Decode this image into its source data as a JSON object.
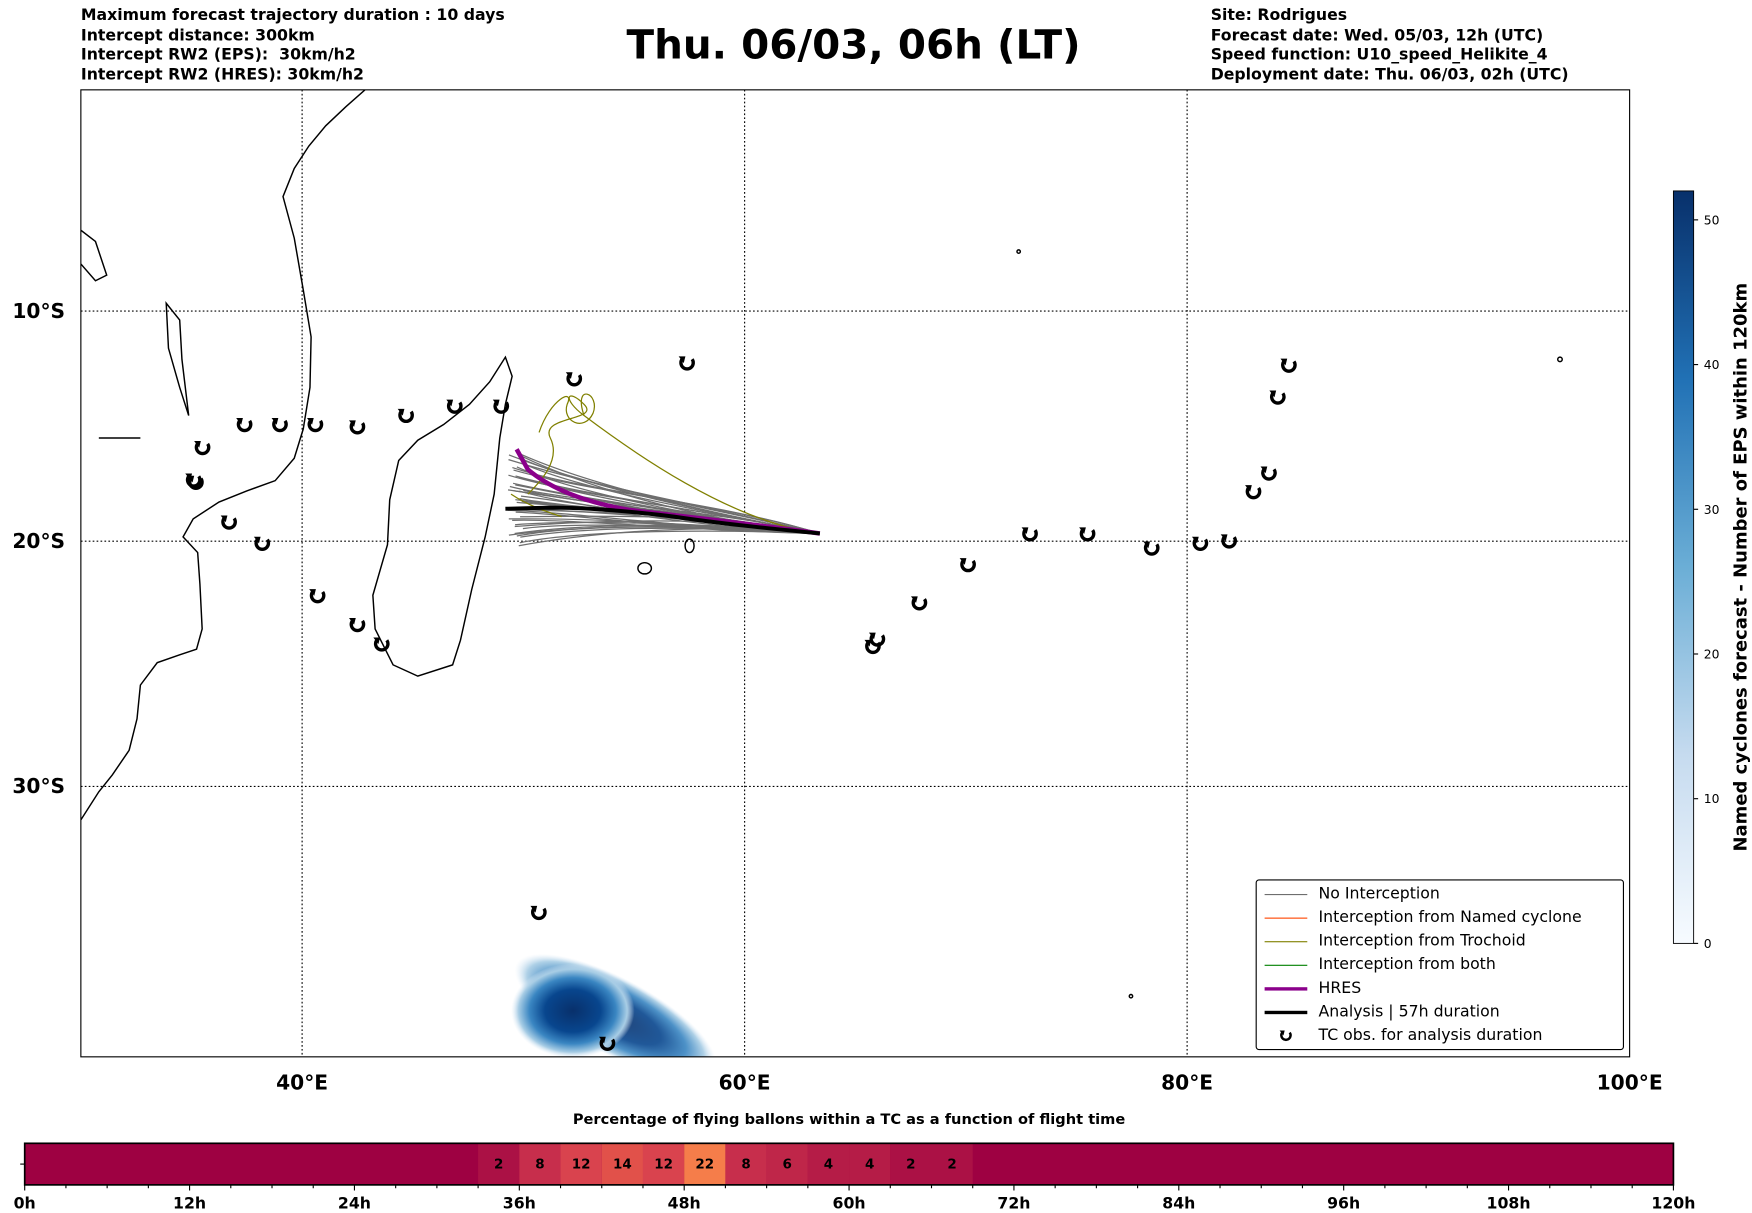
{
  "header": {
    "left": [
      "Maximum forecast trajectory duration : 10 days",
      "Intercept distance: 300km",
      "Intercept RW2 (EPS):  30km/h2",
      "Intercept RW2 (HRES): 30km/h2"
    ],
    "title": "Thu. 06/03, 06h (LT)",
    "right": [
      "Site: Rodrigues",
      "Forecast date: Wed. 05/03, 12h (UTC)",
      "Speed function: U10_speed_Helikite_4",
      "Deployment date: Thu. 06/03, 02h (UTC)"
    ]
  },
  "map": {
    "lon_ticks": [
      {
        "v": 40,
        "label": "40°E"
      },
      {
        "v": 60,
        "label": "60°E"
      },
      {
        "v": 80,
        "label": "80°E"
      },
      {
        "v": 100,
        "label": "100°E"
      }
    ],
    "lat_ticks": [
      {
        "v": -10,
        "label": "10°S"
      },
      {
        "v": -20,
        "label": "20°S"
      },
      {
        "v": -30,
        "label": "30°S"
      }
    ],
    "extent": {
      "lon": [
        30,
        100
      ],
      "lat": [
        -39.6,
        0
      ]
    },
    "tc_obs": [
      [
        37.4,
        -15.0
      ],
      [
        39.0,
        -15.0
      ],
      [
        40.6,
        -15.0
      ],
      [
        42.5,
        -15.1
      ],
      [
        44.7,
        -14.6
      ],
      [
        46.9,
        -14.2
      ],
      [
        49.0,
        -14.2
      ],
      [
        52.3,
        -13.0
      ],
      [
        57.4,
        -12.3
      ],
      [
        35.5,
        -16.0
      ],
      [
        35.2,
        -17.5
      ],
      [
        35.1,
        -17.4
      ],
      [
        36.7,
        -19.2
      ],
      [
        38.2,
        -20.1
      ],
      [
        40.7,
        -22.3
      ],
      [
        42.5,
        -23.5
      ],
      [
        43.6,
        -24.3
      ],
      [
        50.7,
        -34.8
      ],
      [
        53.8,
        -39.5
      ],
      [
        65.8,
        -24.4
      ],
      [
        66.0,
        -24.1
      ],
      [
        67.9,
        -22.6
      ],
      [
        70.1,
        -21.0
      ],
      [
        72.9,
        -19.7
      ],
      [
        75.5,
        -19.7
      ],
      [
        78.4,
        -20.3
      ],
      [
        80.6,
        -20.1
      ],
      [
        81.9,
        -20.0
      ],
      [
        83.0,
        -17.9
      ],
      [
        83.7,
        -17.1
      ],
      [
        84.1,
        -13.8
      ],
      [
        84.6,
        -12.4
      ]
    ],
    "colors": {
      "no_interception": "#6e6e6e",
      "named_cyclone": "#ff4500",
      "trochoid": "#808000",
      "both": "#008000",
      "hres": "#8b008b",
      "analysis": "#000000"
    }
  },
  "legend": {
    "items": [
      "No Interception",
      "Interception from Named cyclone",
      "Interception from Trochoid",
      "Interception from both",
      "HRES",
      "Analysis | 57h duration",
      "TC obs. for analysis duration"
    ]
  },
  "colorbar": {
    "label": "Named cyclones forecast - Number of EPS within 120km",
    "range": [
      0,
      52
    ],
    "ticks": [
      "0",
      "10",
      "20",
      "30",
      "40",
      "50"
    ]
  },
  "flight_bar": {
    "title": "Percentage of flying ballons within a TC as a function of flight time",
    "range_h": [
      0,
      120
    ],
    "bin_h": 3,
    "ticks": [
      "0h",
      "12h",
      "24h",
      "36h",
      "48h",
      "60h",
      "72h",
      "84h",
      "96h",
      "108h",
      "120h"
    ],
    "cells": [
      {
        "start": 33,
        "value": 2,
        "label": "2",
        "color": "#ab1145"
      },
      {
        "start": 36,
        "value": 8,
        "label": "8",
        "color": "#c72e4c"
      },
      {
        "start": 39,
        "value": 12,
        "label": "12",
        "color": "#d9434e"
      },
      {
        "start": 42,
        "value": 14,
        "label": "14",
        "color": "#e1514a"
      },
      {
        "start": 45,
        "value": 12,
        "label": "12",
        "color": "#d9434e"
      },
      {
        "start": 48,
        "value": 22,
        "label": "22",
        "color": "#f57d4a"
      },
      {
        "start": 51,
        "value": 8,
        "label": "8",
        "color": "#c72e4c"
      },
      {
        "start": 54,
        "value": 6,
        "label": "6",
        "color": "#bf2649"
      },
      {
        "start": 57,
        "value": 4,
        "label": "4",
        "color": "#b51c47"
      },
      {
        "start": 60,
        "value": 4,
        "label": "4",
        "color": "#b51c47"
      },
      {
        "start": 63,
        "value": 2,
        "label": "2",
        "color": "#ab1145"
      },
      {
        "start": 66,
        "value": 2,
        "label": "2",
        "color": "#ab1145"
      }
    ],
    "base_color": "#9e0142"
  }
}
